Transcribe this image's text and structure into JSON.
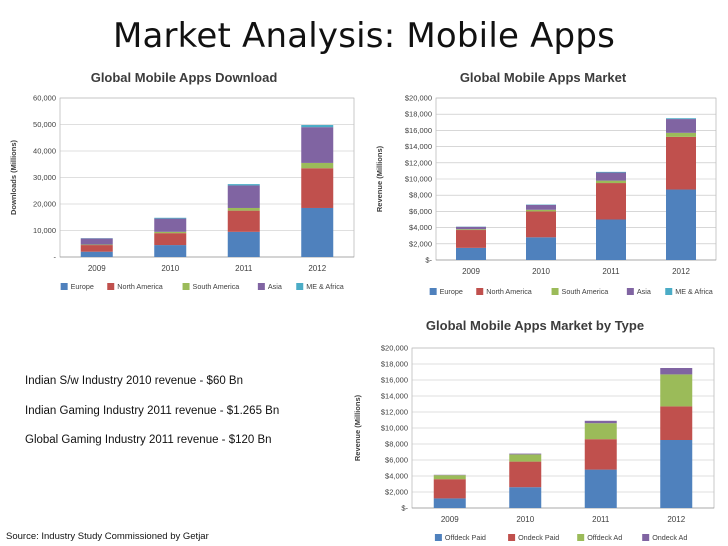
{
  "slide": {
    "title": "Market Analysis: Mobile Apps",
    "facts": [
      "Indian S/w Industry 2010 revenue - $60 Bn",
      "Indian Gaming Industry 2011 revenue -  $1.265 Bn",
      "Global Gaming Industry 2011 revenue - $120 Bn"
    ],
    "source": "Source:  Industry Study Commissioned by Getjar"
  },
  "chart_data": [
    {
      "id": "downloads",
      "type": "bar",
      "stacked": true,
      "title": "Global Mobile Apps Download",
      "xlabel": "",
      "ylabel": "Downloads (Millions)",
      "categories": [
        "2009",
        "2010",
        "2011",
        "2012"
      ],
      "ylim": [
        0,
        60000
      ],
      "yticks": [
        0,
        10000,
        20000,
        30000,
        40000,
        50000,
        60000
      ],
      "ytick_labels": [
        "-",
        "10,000",
        "20,000",
        "30,000",
        "40,000",
        "50,000",
        "60,000"
      ],
      "grid": true,
      "legend": "bottom",
      "series": [
        {
          "name": "Europe",
          "color": "#4f81bd",
          "values": [
            2000,
            4500,
            9500,
            18500
          ]
        },
        {
          "name": "North America",
          "color": "#c0504d",
          "values": [
            2500,
            4500,
            8000,
            15000
          ]
        },
        {
          "name": "South America",
          "color": "#9bbb59",
          "values": [
            200,
            500,
            1000,
            2000
          ]
        },
        {
          "name": "Asia",
          "color": "#8064a2",
          "values": [
            2300,
            5000,
            8500,
            13500
          ]
        },
        {
          "name": "ME & Africa",
          "color": "#4bacc6",
          "values": [
            100,
            300,
            500,
            800
          ]
        }
      ]
    },
    {
      "id": "market",
      "type": "bar",
      "stacked": true,
      "title": "Global Mobile Apps Market",
      "xlabel": "",
      "ylabel": "Revenue (Millions)",
      "categories": [
        "2009",
        "2010",
        "2011",
        "2012"
      ],
      "ylim": [
        0,
        20000
      ],
      "yticks": [
        0,
        2000,
        4000,
        6000,
        8000,
        10000,
        12000,
        14000,
        16000,
        18000,
        20000
      ],
      "ytick_labels": [
        "$-",
        "$2,000",
        "$4,000",
        "$6,000",
        "$8,000",
        "$10,000",
        "$12,000",
        "$14,000",
        "$16,000",
        "$18,000",
        "$20,000"
      ],
      "grid": true,
      "legend": "bottom",
      "series": [
        {
          "name": "Europe",
          "color": "#4f81bd",
          "values": [
            1500,
            2800,
            5000,
            8700
          ]
        },
        {
          "name": "North America",
          "color": "#c0504d",
          "values": [
            2200,
            3200,
            4500,
            6500
          ]
        },
        {
          "name": "South America",
          "color": "#9bbb59",
          "values": [
            100,
            200,
            300,
            500
          ]
        },
        {
          "name": "Asia",
          "color": "#8064a2",
          "values": [
            300,
            600,
            1000,
            1700
          ]
        },
        {
          "name": "ME & Africa",
          "color": "#4bacc6",
          "values": [
            30,
            50,
            80,
            100
          ]
        }
      ]
    },
    {
      "id": "type",
      "type": "bar",
      "stacked": true,
      "title": "Global Mobile Apps Market by Type",
      "xlabel": "",
      "ylabel": "Revenue (Millions)",
      "categories": [
        "2009",
        "2010",
        "2011",
        "2012"
      ],
      "ylim": [
        0,
        20000
      ],
      "yticks": [
        0,
        2000,
        4000,
        6000,
        8000,
        10000,
        12000,
        14000,
        16000,
        18000,
        20000
      ],
      "ytick_labels": [
        "$-",
        "$2,000",
        "$4,000",
        "$6,000",
        "$8,000",
        "$10,000",
        "$12,000",
        "$14,000",
        "$16,000",
        "$18,000",
        "$20,000"
      ],
      "grid": true,
      "legend": "bottom",
      "series": [
        {
          "name": "Offdeck Paid",
          "color": "#4f81bd",
          "values": [
            1200,
            2600,
            4800,
            8500
          ]
        },
        {
          "name": "Ondeck Paid",
          "color": "#c0504d",
          "values": [
            2400,
            3200,
            3800,
            4200
          ]
        },
        {
          "name": "Offdeck Ad",
          "color": "#9bbb59",
          "values": [
            500,
            900,
            2000,
            4000
          ]
        },
        {
          "name": "Ondeck Ad",
          "color": "#8064a2",
          "values": [
            50,
            100,
            300,
            800
          ]
        }
      ]
    }
  ]
}
